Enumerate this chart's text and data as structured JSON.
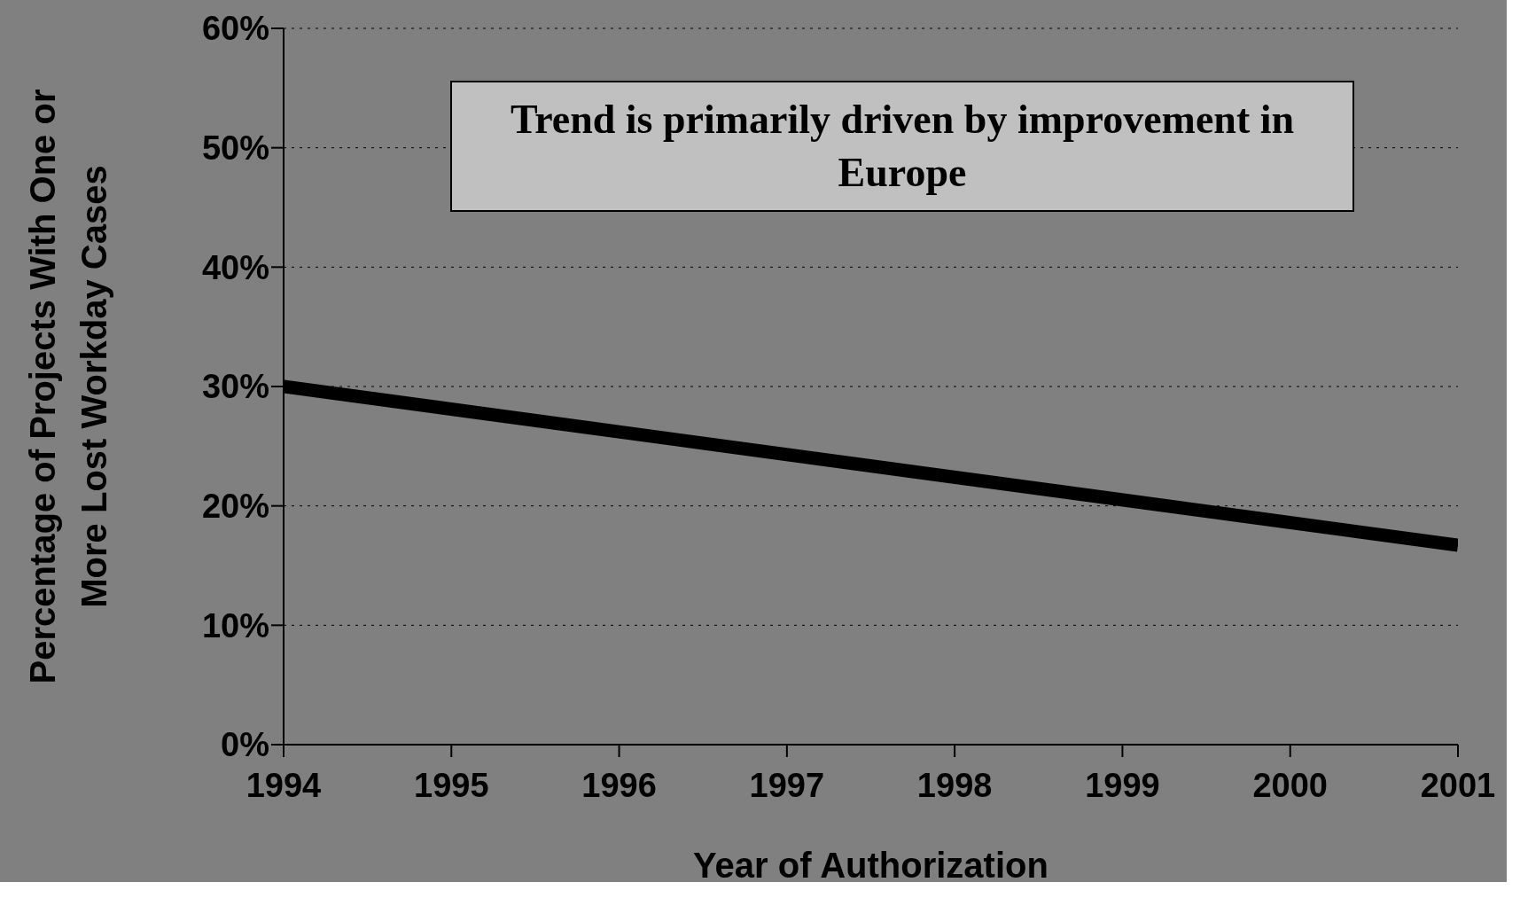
{
  "chart_data": {
    "type": "line",
    "xlabel": "Year of Authorization",
    "ylabel": "Percentage of Projects With One or More Lost Workday Cases",
    "annotations": [
      "Trend is primarily driven by improvement in Europe"
    ],
    "x": [
      1994,
      2001
    ],
    "series": [
      {
        "color": "#000000",
        "values": [
          30,
          16.7
        ]
      }
    ],
    "xlim": [
      1994,
      2001
    ],
    "xticks": [
      1994,
      1995,
      1996,
      1997,
      1998,
      1999,
      2000,
      2001
    ],
    "ylim": [
      0,
      60
    ],
    "yticks": [
      {
        "value": 0,
        "label": "0%"
      },
      {
        "value": 10,
        "label": "10%"
      },
      {
        "value": 20,
        "label": "20%"
      },
      {
        "value": 30,
        "label": "30%"
      },
      {
        "value": 40,
        "label": "40%"
      },
      {
        "value": 50,
        "label": "50%"
      },
      {
        "value": 60,
        "label": "60%"
      }
    ],
    "grid": "y",
    "marker": "none",
    "line_style": "solid"
  }
}
